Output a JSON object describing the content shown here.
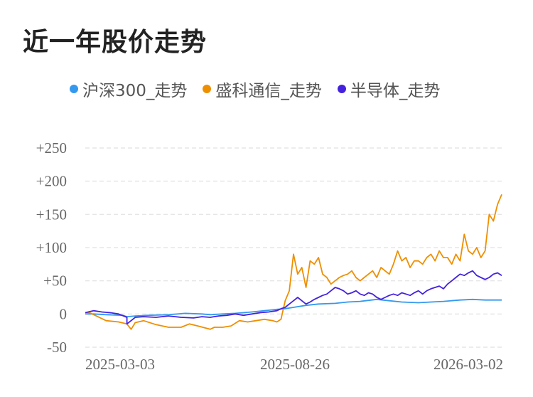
{
  "title": "近一年股价走势",
  "chart_data": {
    "type": "line",
    "y_ticks": [
      {
        "value": 250,
        "label": "+250"
      },
      {
        "value": 200,
        "label": "+200"
      },
      {
        "value": 150,
        "label": "+150"
      },
      {
        "value": 100,
        "label": "+100"
      },
      {
        "value": 50,
        "label": "+50"
      },
      {
        "value": 0,
        "label": "0"
      },
      {
        "value": -50,
        "label": "-50"
      }
    ],
    "ylim": [
      -50,
      250
    ],
    "x_tick_labels": [
      "2025-03-03",
      "2025-08-26",
      "2026-03-02"
    ],
    "grid": true,
    "legend_position": "top",
    "series": [
      {
        "name": "沪深300_走势",
        "color": "#3399ee",
        "x": [
          0,
          0.02,
          0.05,
          0.09,
          0.1,
          0.12,
          0.15,
          0.2,
          0.24,
          0.28,
          0.3,
          0.33,
          0.36,
          0.4,
          0.43,
          0.46,
          0.48,
          0.5,
          0.53,
          0.56,
          0.6,
          0.63,
          0.66,
          0.7,
          0.73,
          0.76,
          0.8,
          0.83,
          0.86,
          0.9,
          0.93,
          0.96,
          1.0
        ],
        "y": [
          0,
          0,
          -1,
          -2,
          -4,
          -3,
          -2,
          -1,
          1,
          0,
          -1,
          0,
          1,
          3,
          5,
          7,
          8,
          10,
          13,
          15,
          16,
          18,
          19,
          22,
          20,
          18,
          17,
          18,
          19,
          21,
          22,
          21,
          21
        ]
      },
      {
        "name": "盛科通信_走势",
        "color": "#ee8f00",
        "x": [
          0,
          0.01,
          0.03,
          0.05,
          0.08,
          0.1,
          0.11,
          0.12,
          0.14,
          0.17,
          0.2,
          0.23,
          0.25,
          0.27,
          0.3,
          0.31,
          0.33,
          0.35,
          0.37,
          0.39,
          0.41,
          0.43,
          0.45,
          0.46,
          0.47,
          0.48,
          0.49,
          0.5,
          0.51,
          0.52,
          0.53,
          0.54,
          0.55,
          0.56,
          0.57,
          0.58,
          0.59,
          0.6,
          0.61,
          0.62,
          0.63,
          0.64,
          0.65,
          0.66,
          0.67,
          0.68,
          0.69,
          0.7,
          0.71,
          0.72,
          0.73,
          0.74,
          0.75,
          0.76,
          0.77,
          0.78,
          0.79,
          0.8,
          0.81,
          0.82,
          0.83,
          0.84,
          0.85,
          0.86,
          0.87,
          0.88,
          0.89,
          0.9,
          0.91,
          0.92,
          0.93,
          0.94,
          0.95,
          0.96,
          0.97,
          0.98,
          0.99,
          1.0
        ],
        "y": [
          0,
          2,
          -4,
          -10,
          -12,
          -15,
          -23,
          -13,
          -10,
          -16,
          -20,
          -20,
          -15,
          -18,
          -23,
          -20,
          -20,
          -18,
          -10,
          -12,
          -10,
          -8,
          -10,
          -12,
          -8,
          20,
          35,
          90,
          60,
          70,
          40,
          80,
          75,
          85,
          60,
          55,
          45,
          50,
          55,
          58,
          60,
          65,
          55,
          50,
          55,
          60,
          65,
          55,
          70,
          65,
          60,
          75,
          95,
          80,
          85,
          70,
          80,
          80,
          75,
          85,
          90,
          80,
          95,
          85,
          85,
          75,
          90,
          80,
          120,
          95,
          90,
          100,
          85,
          95,
          150,
          140,
          165,
          180
        ]
      },
      {
        "name": "半导体_走势",
        "color": "#4422dd",
        "x": [
          0,
          0.02,
          0.04,
          0.06,
          0.08,
          0.1,
          0.1,
          0.11,
          0.12,
          0.14,
          0.17,
          0.2,
          0.23,
          0.26,
          0.28,
          0.3,
          0.32,
          0.34,
          0.36,
          0.38,
          0.4,
          0.42,
          0.44,
          0.46,
          0.47,
          0.48,
          0.49,
          0.5,
          0.51,
          0.52,
          0.53,
          0.54,
          0.55,
          0.56,
          0.57,
          0.58,
          0.59,
          0.6,
          0.61,
          0.62,
          0.63,
          0.64,
          0.65,
          0.66,
          0.67,
          0.68,
          0.69,
          0.7,
          0.71,
          0.72,
          0.73,
          0.74,
          0.75,
          0.76,
          0.77,
          0.78,
          0.79,
          0.8,
          0.81,
          0.82,
          0.83,
          0.84,
          0.85,
          0.86,
          0.87,
          0.88,
          0.89,
          0.9,
          0.91,
          0.92,
          0.93,
          0.94,
          0.95,
          0.96,
          0.97,
          0.98,
          0.99,
          1.0
        ],
        "y": [
          2,
          5,
          3,
          2,
          0,
          -5,
          -15,
          -10,
          -5,
          -4,
          -5,
          -3,
          -5,
          -6,
          -4,
          -5,
          -3,
          -2,
          0,
          -2,
          0,
          2,
          3,
          5,
          8,
          10,
          15,
          20,
          25,
          20,
          15,
          18,
          22,
          25,
          28,
          30,
          35,
          40,
          38,
          35,
          30,
          32,
          35,
          30,
          28,
          32,
          30,
          25,
          22,
          25,
          28,
          30,
          28,
          32,
          30,
          28,
          32,
          35,
          30,
          35,
          38,
          40,
          42,
          38,
          45,
          50,
          55,
          60,
          58,
          62,
          65,
          58,
          55,
          52,
          55,
          60,
          62,
          58
        ]
      }
    ]
  }
}
